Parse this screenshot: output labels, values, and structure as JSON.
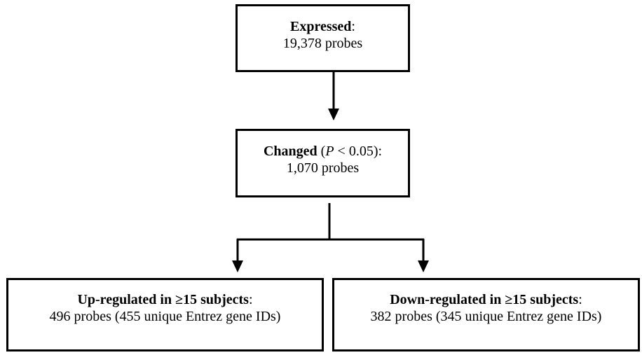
{
  "nodes": {
    "expressed": {
      "title": "Expressed",
      "suffix": ":",
      "detail": "19,378 probes"
    },
    "changed": {
      "title": "Changed",
      "paren_open": " (",
      "p_symbol": "P",
      "condition": " < 0.05):",
      "detail": "1,070 probes"
    },
    "up_regulated": {
      "title": "Up-regulated in ≥15 subjects",
      "suffix": ":",
      "detail": "496 probes (455 unique Entrez gene IDs)"
    },
    "down_regulated": {
      "title": "Down-regulated in ≥15 subjects",
      "suffix": ":",
      "detail": "382 probes (345 unique Entrez gene IDs)"
    }
  },
  "edges": [
    {
      "from": "expressed",
      "to": "changed"
    },
    {
      "from": "changed",
      "to": "up_regulated"
    },
    {
      "from": "changed",
      "to": "down_regulated"
    }
  ]
}
